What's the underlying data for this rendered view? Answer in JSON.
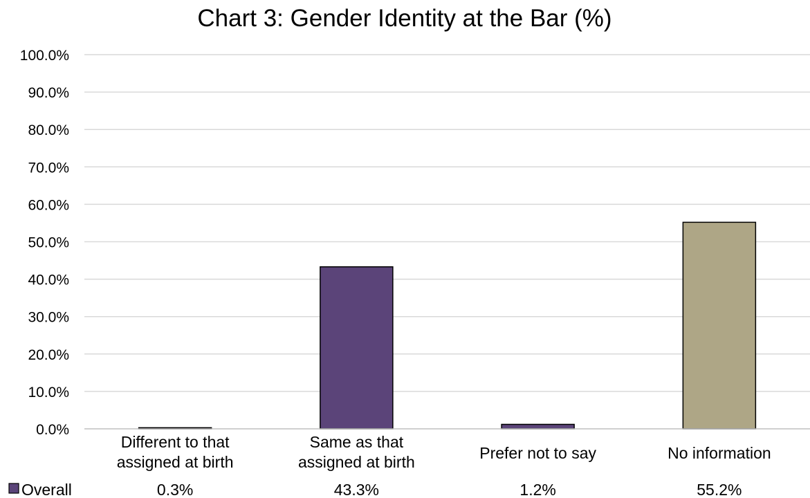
{
  "chart_data": {
    "type": "bar",
    "title": "Chart 3: Gender Identity at the Bar (%)",
    "xlabel": "",
    "ylabel": "",
    "ylim": [
      0,
      100
    ],
    "y_ticks": [
      "0.0%",
      "10.0%",
      "20.0%",
      "30.0%",
      "40.0%",
      "50.0%",
      "60.0%",
      "70.0%",
      "80.0%",
      "90.0%",
      "100.0%"
    ],
    "grid": true,
    "categories": [
      [
        "Different to that",
        "assigned at birth"
      ],
      [
        "Same as that",
        "assigned at birth"
      ],
      [
        "Prefer not to say"
      ],
      [
        "No information"
      ]
    ],
    "series": [
      {
        "name": "Overall",
        "values": [
          0.3,
          43.3,
          1.2,
          55.2
        ],
        "labels": [
          "0.3%",
          "43.3%",
          "1.2%",
          "55.2%"
        ]
      }
    ],
    "legend_placement": "bottom-left (data table)",
    "colors": {
      "series": "#5b4479",
      "highlight": "#aea686",
      "grid": "#d9d9d9",
      "axis": "#bfbfbf",
      "border": "#000000"
    },
    "bar_colors": [
      "#5b4479",
      "#5b4479",
      "#5b4479",
      "#aea686"
    ]
  }
}
